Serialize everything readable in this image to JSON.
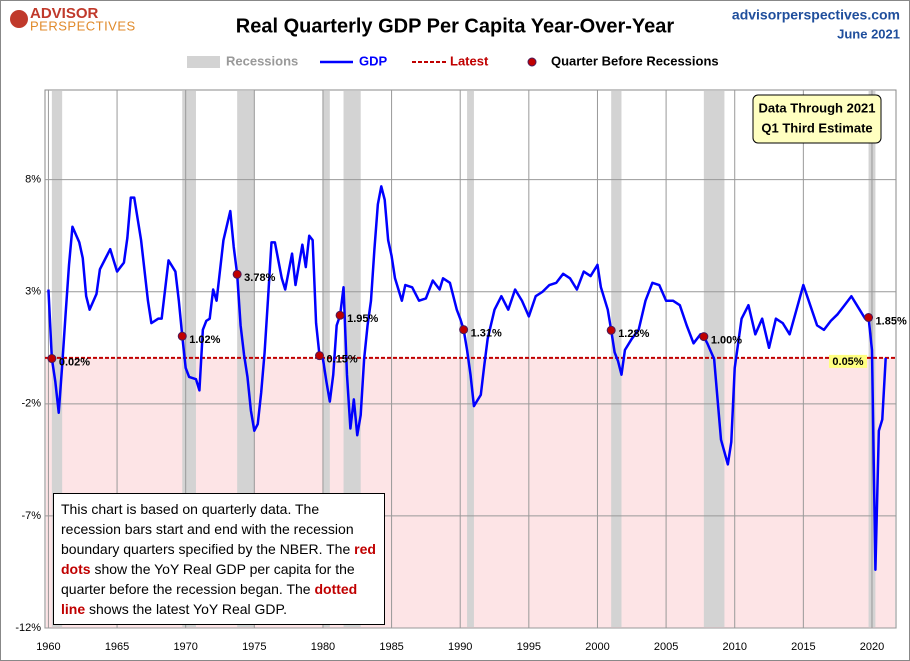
{
  "chart_data": {
    "type": "line",
    "logo": [
      "ADVISOR",
      "PERSPECTIVES"
    ],
    "title": "Real Quarterly GDP Per Capita Year-Over-Year",
    "source": "advisorperspectives.com",
    "date": "June 2021",
    "xlim": [
      1959.75,
      2021.75
    ],
    "xticks": [
      1960,
      1965,
      1970,
      1975,
      1980,
      1985,
      1990,
      1995,
      2000,
      2005,
      2010,
      2015,
      2020
    ],
    "ylim": [
      -12,
      12
    ],
    "yticks": [
      {
        "value": -12,
        "label": "-12%"
      },
      {
        "value": -7,
        "label": "-7%"
      },
      {
        "value": -2,
        "label": "-2%"
      },
      {
        "value": 3,
        "label": "3%"
      },
      {
        "value": 8,
        "label": "8%"
      }
    ],
    "grid": true,
    "recessions": {
      "name": "Recessions",
      "color": "#d3d3d3",
      "periods": [
        [
          1960.25,
          1961.0
        ],
        [
          1969.75,
          1970.75
        ],
        [
          1973.75,
          1975.0
        ],
        [
          1980.0,
          1980.5
        ],
        [
          1981.5,
          1982.75
        ],
        [
          1990.5,
          1991.0
        ],
        [
          2001.0,
          2001.75
        ],
        [
          2007.75,
          2009.25
        ],
        [
          2019.75,
          2020.25
        ]
      ]
    },
    "series": [
      {
        "name": "GDP",
        "color": "#0000ff",
        "x": [
          1960.0,
          1960.25,
          1960.5,
          1960.75,
          1961.0,
          1961.25,
          1961.5,
          1961.75,
          1962.25,
          1962.5,
          1962.75,
          1963.0,
          1963.5,
          1963.75,
          1964.25,
          1964.5,
          1965.0,
          1965.5,
          1965.75,
          1966.0,
          1966.25,
          1966.75,
          1967.25,
          1967.5,
          1968.0,
          1968.25,
          1968.75,
          1969.25,
          1969.5,
          1969.75,
          1970.0,
          1970.25,
          1970.75,
          1971.0,
          1971.25,
          1971.5,
          1971.75,
          1972.0,
          1972.25,
          1972.75,
          1973.25,
          1973.5,
          1973.75,
          1974.0,
          1974.25,
          1974.5,
          1974.75,
          1975.0,
          1975.25,
          1975.5,
          1975.75,
          1976.0,
          1976.25,
          1976.5,
          1976.75,
          1977.0,
          1977.25,
          1977.75,
          1978.0,
          1978.5,
          1978.75,
          1979.0,
          1979.25,
          1979.5,
          1979.75,
          1980.0,
          1980.25,
          1980.5,
          1980.75,
          1981.0,
          1981.25,
          1981.5,
          1981.75,
          1982.0,
          1982.25,
          1982.5,
          1982.75,
          1983.0,
          1983.25,
          1983.5,
          1983.75,
          1984.0,
          1984.25,
          1984.5,
          1984.75,
          1985.0,
          1985.25,
          1985.75,
          1986.0,
          1986.5,
          1987.0,
          1987.5,
          1988.0,
          1988.5,
          1988.75,
          1989.25,
          1989.75,
          1990.0,
          1990.25,
          1990.5,
          1990.75,
          1991.0,
          1991.5,
          1991.75,
          1992.0,
          1992.5,
          1993.0,
          1993.5,
          1994.0,
          1994.5,
          1995.0,
          1995.5,
          1996.0,
          1996.5,
          1997.0,
          1997.5,
          1998.0,
          1998.5,
          1999.0,
          1999.5,
          2000.0,
          2000.25,
          2000.75,
          2001.0,
          2001.25,
          2001.5,
          2001.75,
          2002.0,
          2002.5,
          2003.0,
          2003.5,
          2004.0,
          2004.5,
          2005.0,
          2005.5,
          2006.0,
          2006.5,
          2007.0,
          2007.5,
          2007.75,
          2008.0,
          2008.5,
          2008.75,
          2009.0,
          2009.5,
          2009.75,
          2010.0,
          2010.5,
          2011.0,
          2011.5,
          2012.0,
          2012.5,
          2013.0,
          2013.5,
          2014.0,
          2014.5,
          2015.0,
          2015.5,
          2016.0,
          2016.5,
          2017.0,
          2017.5,
          2018.0,
          2018.5,
          2019.0,
          2019.5,
          2019.75,
          2020.0,
          2020.25,
          2020.5,
          2020.75,
          2021.0
        ],
        "values": [
          3.1,
          0.02,
          -1.0,
          -2.4,
          -0.3,
          2.0,
          4.2,
          5.9,
          5.2,
          4.5,
          2.8,
          2.2,
          2.9,
          4.0,
          4.6,
          4.9,
          3.9,
          4.3,
          5.4,
          7.2,
          7.2,
          5.3,
          2.6,
          1.6,
          1.8,
          1.8,
          4.4,
          3.9,
          2.6,
          1.02,
          -0.4,
          -0.8,
          -0.9,
          -1.4,
          1.3,
          1.7,
          1.8,
          3.1,
          2.6,
          5.3,
          6.6,
          5.0,
          3.78,
          1.5,
          0.2,
          -0.8,
          -2.3,
          -3.2,
          -2.9,
          -1.5,
          0.3,
          2.7,
          5.2,
          5.2,
          4.4,
          3.6,
          3.1,
          4.7,
          3.3,
          5.1,
          4.1,
          5.5,
          5.3,
          1.6,
          0.15,
          0.0,
          -1.0,
          -1.9,
          -0.7,
          1.5,
          1.95,
          3.2,
          -0.7,
          -3.1,
          -1.8,
          -3.4,
          -2.5,
          0.0,
          1.5,
          2.6,
          4.9,
          6.9,
          7.7,
          7.1,
          5.3,
          4.6,
          3.6,
          2.6,
          3.3,
          3.2,
          2.6,
          2.7,
          3.5,
          3.1,
          3.6,
          3.4,
          2.2,
          1.8,
          1.31,
          0.4,
          -0.7,
          -2.1,
          -1.6,
          -0.3,
          0.9,
          2.2,
          2.8,
          2.2,
          3.1,
          2.6,
          1.9,
          2.8,
          3.0,
          3.3,
          3.4,
          3.8,
          3.6,
          3.1,
          3.9,
          3.7,
          4.2,
          3.2,
          2.2,
          1.28,
          0.3,
          -0.1,
          -0.7,
          0.4,
          0.9,
          1.3,
          2.6,
          3.4,
          3.3,
          2.6,
          2.6,
          2.4,
          1.5,
          0.7,
          1.1,
          1.0,
          0.7,
          0.0,
          -1.8,
          -3.6,
          -4.7,
          -3.7,
          -0.4,
          1.8,
          2.4,
          1.1,
          1.8,
          0.5,
          1.8,
          1.6,
          1.1,
          2.2,
          3.3,
          2.4,
          1.5,
          1.3,
          1.7,
          2.0,
          2.4,
          2.8,
          2.3,
          1.8,
          1.85,
          0.4,
          -9.4,
          -3.2,
          -2.7,
          0.05
        ]
      }
    ],
    "latest": {
      "name": "Latest",
      "color": "#c00000",
      "value": 0.05,
      "value_label": "0.05%"
    },
    "markers": {
      "name": "Quarter Before Recessions",
      "color": "#c00000",
      "x": [
        1960.25,
        1969.75,
        1973.75,
        1979.75,
        1981.25,
        1990.25,
        2001.0,
        2007.75,
        2019.75
      ],
      "values": [
        0.02,
        1.02,
        3.78,
        0.15,
        1.95,
        1.31,
        1.28,
        1,
        1.85
      ],
      "value_labels": [
        "0.02%",
        "1.02%",
        "3.78%",
        "0.15%",
        "1.95%",
        "1.31%",
        "1.28%",
        "1.00%",
        "1.85%"
      ]
    },
    "annotation": [
      "Data Through 2021",
      "Q1 Third Estimate"
    ],
    "note": [
      {
        "text": "This chart is based on quarterly data. The recession bars start and end with the recession boundary quarters specified by the  NBER. The ",
        "emphasis": false
      },
      {
        "text": "red dots",
        "emphasis": true
      },
      {
        "text": " show the YoY Real GDP per capita for the quarter before the recession began. The ",
        "emphasis": false
      },
      {
        "text": "dotted line",
        "emphasis": true
      },
      {
        "text": " shows the latest YoY Real GDP.",
        "emphasis": false
      }
    ]
  }
}
